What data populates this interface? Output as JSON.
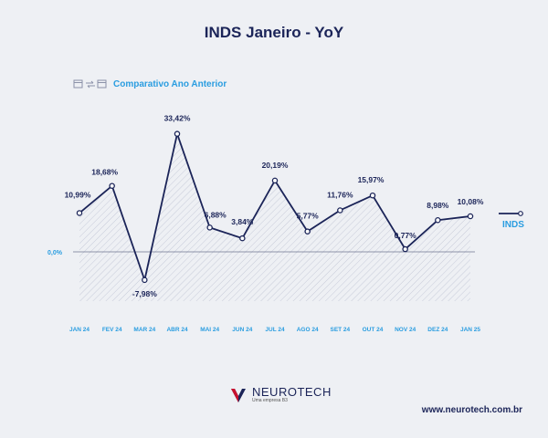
{
  "title": "INDS Janeiro - YoY",
  "subtitle": "Comparativo Ano Anterior",
  "icons": [
    "calendar-icon",
    "swap-arrows-icon",
    "calendar-icon"
  ],
  "colors": {
    "line": "#1b2458",
    "accent": "#2a9de0",
    "zero_line": "#6e7591",
    "hatch": "#c7cbd9"
  },
  "chart_data": {
    "type": "line",
    "categories": [
      "JAN 24",
      "FEV 24",
      "MAR 24",
      "ABR 24",
      "MAI 24",
      "JUN 24",
      "JUL 24",
      "AGO 24",
      "SET 24",
      "OUT 24",
      "NOV 24",
      "DEZ 24",
      "JAN 25"
    ],
    "series": [
      {
        "name": "INDS",
        "values": [
          10.99,
          18.68,
          -7.98,
          33.42,
          6.88,
          3.84,
          20.19,
          5.77,
          11.76,
          15.97,
          0.77,
          8.98,
          10.08
        ]
      }
    ],
    "data_labels": [
      "10,99%",
      "18,68%",
      "-7,98%",
      "33,42%",
      "6,88%",
      "3,84%",
      "20,19%",
      "5,77%",
      "11,76%",
      "15,97%",
      "0,77%",
      "8,98%",
      "10,08%"
    ],
    "zero_label": "0,0%",
    "legend": {
      "label": "INDS",
      "position": "right"
    },
    "grid": false
  },
  "footer": {
    "brand": "NEUROTECH",
    "brand_sub": "Uma empresa B3",
    "website": "www.neurotech.com.br"
  }
}
